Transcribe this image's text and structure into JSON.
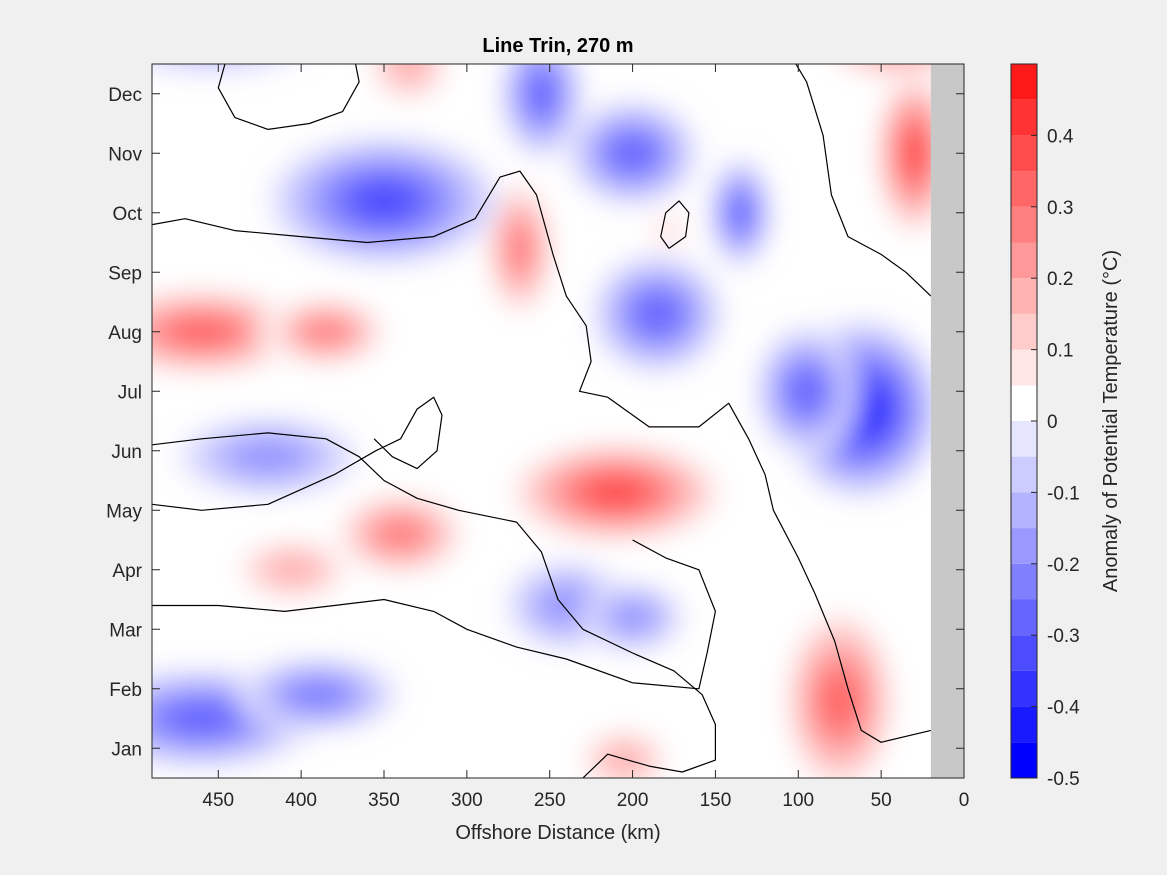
{
  "chart_data": {
    "type": "heatmap",
    "subtype": "filled-contour",
    "title": "Line Trin, 270 m",
    "xlabel": "Offshore Distance (km)",
    "ylabel": "",
    "x_direction": "reversed",
    "xlim": [
      0,
      490
    ],
    "xticks": [
      450,
      400,
      350,
      300,
      250,
      200,
      150,
      100,
      50,
      0
    ],
    "yticks": [
      "Jan",
      "Feb",
      "Mar",
      "Apr",
      "May",
      "Jun",
      "Jul",
      "Aug",
      "Sep",
      "Oct",
      "Nov",
      "Dec"
    ],
    "no_data_region_km": [
      0,
      20
    ],
    "colorbar": {
      "label": "Anomaly of Potential Temperature (°C)",
      "levels": [
        -0.5,
        -0.45,
        -0.4,
        -0.35,
        -0.3,
        -0.25,
        -0.2,
        -0.15,
        -0.1,
        -0.05,
        0,
        0.05,
        0.1,
        0.15,
        0.2,
        0.25,
        0.3,
        0.35,
        0.4,
        0.45,
        0.5
      ],
      "ticks": [
        -0.5,
        -0.4,
        -0.3,
        -0.2,
        -0.1,
        0,
        0.1,
        0.2,
        0.3,
        0.4
      ],
      "tick_labels": [
        "-0.5",
        "-0.4",
        "-0.3",
        "-0.2",
        "-0.1",
        "0",
        "0.1",
        "0.2",
        "0.3",
        "0.4"
      ],
      "neg_colors": [
        "#0000ff",
        "#1a1aff",
        "#3333ff",
        "#4d4dff",
        "#6666ff",
        "#8080ff",
        "#9999ff",
        "#b3b3ff",
        "#ccccff",
        "#e6e6ff"
      ],
      "pos_colors": [
        "#ffffff",
        "#ffe6e6",
        "#ffcccc",
        "#ffb3b3",
        "#ff9999",
        "#ff8080",
        "#ff6666",
        "#ff4d4d",
        "#ff3333",
        "#ff1a1a"
      ]
    },
    "features": [
      {
        "x_km": 460,
        "month": 8.0,
        "value": 0.35,
        "sign": "warm"
      },
      {
        "x_km": 385,
        "month": 8.0,
        "value": 0.3,
        "sign": "warm"
      },
      {
        "x_km": 268,
        "month": 9.4,
        "value": 0.3,
        "sign": "warm"
      },
      {
        "x_km": 210,
        "month": 5.3,
        "value": 0.42,
        "sign": "warm"
      },
      {
        "x_km": 75,
        "month": 1.8,
        "value": 0.35,
        "sign": "warm"
      },
      {
        "x_km": 30,
        "month": 11.0,
        "value": 0.42,
        "sign": "warm"
      },
      {
        "x_km": 40,
        "month": 12.9,
        "value": 0.25,
        "sign": "warm"
      },
      {
        "x_km": 340,
        "month": 4.6,
        "value": 0.28,
        "sign": "warm"
      },
      {
        "x_km": 405,
        "month": 4.0,
        "value": 0.22,
        "sign": "warm"
      },
      {
        "x_km": 335,
        "month": 12.5,
        "value": 0.18,
        "sign": "warm"
      },
      {
        "x_km": 178,
        "month": 9.7,
        "value": 0.1,
        "sign": "warm"
      },
      {
        "x_km": 205,
        "month": 0.8,
        "value": 0.18,
        "sign": "warm"
      },
      {
        "x_km": 350,
        "month": 10.2,
        "value": -0.35,
        "sign": "cold"
      },
      {
        "x_km": 62,
        "month": 6.7,
        "value": -0.45,
        "sign": "cold"
      },
      {
        "x_km": 185,
        "month": 8.3,
        "value": -0.3,
        "sign": "cold"
      },
      {
        "x_km": 200,
        "month": 11.0,
        "value": -0.3,
        "sign": "cold"
      },
      {
        "x_km": 255,
        "month": 12.0,
        "value": -0.28,
        "sign": "cold"
      },
      {
        "x_km": 135,
        "month": 10.0,
        "value": -0.28,
        "sign": "cold"
      },
      {
        "x_km": 460,
        "month": 1.5,
        "value": -0.28,
        "sign": "cold"
      },
      {
        "x_km": 390,
        "month": 1.9,
        "value": -0.25,
        "sign": "cold"
      },
      {
        "x_km": 420,
        "month": 5.9,
        "value": -0.2,
        "sign": "cold"
      },
      {
        "x_km": 240,
        "month": 3.4,
        "value": -0.22,
        "sign": "cold"
      },
      {
        "x_km": 200,
        "month": 3.2,
        "value": -0.2,
        "sign": "cold"
      },
      {
        "x_km": 455,
        "month": 13.0,
        "value": -0.15,
        "sign": "cold"
      },
      {
        "x_km": 95,
        "month": 7.0,
        "value": -0.3,
        "sign": "cold"
      }
    ]
  }
}
